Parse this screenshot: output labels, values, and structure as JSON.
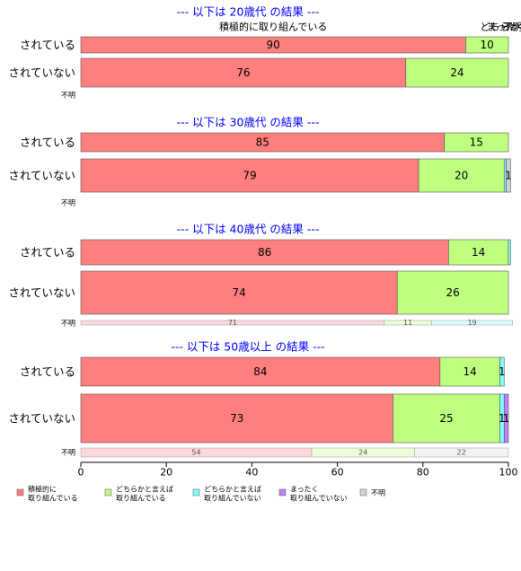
{
  "chart_data": {
    "type": "bar",
    "orientation": "horizontal",
    "stacked": true,
    "xlim": [
      0,
      100
    ],
    "x_ticks": [
      "0",
      "20",
      "40",
      "60",
      "80",
      "100"
    ],
    "legend_position": "bottom",
    "series": [
      {
        "name": "積極的に\n取り組んでいる",
        "color": "#FF7F7F"
      },
      {
        "name": "どちらかと言えば\n取り組んでいる",
        "color": "#BFFF7F"
      },
      {
        "name": "どちらかと言えば\n取り組んでいない",
        "color": "#7FFFFF"
      },
      {
        "name": "まったく\n取り組んでいない",
        "color": "#BF7FFF"
      },
      {
        "name": "不明",
        "color": "#D3D3D3"
      }
    ],
    "panels": [
      {
        "title": "--- 以下は 20歳代 の結果 ---",
        "top_labels": [
          {
            "text": "積極的に取り組んでいる",
            "at": 45
          },
          {
            "text": "どちらか",
            "at": 98
          },
          {
            "text": "まったく",
            "at": 99.5
          },
          {
            "text": "不明",
            "at": 101
          }
        ],
        "rows": [
          {
            "category": "されている",
            "values": [
              90,
              10,
              0,
              0,
              0
            ],
            "labels": [
              "90",
              "10",
              "",
              "",
              ""
            ]
          },
          {
            "category": "されていない",
            "values": [
              76,
              24,
              0,
              0,
              0
            ],
            "labels": [
              "76",
              "24",
              "",
              "",
              ""
            ]
          }
        ],
        "unknown": {
          "label": "不明",
          "values": [],
          "labels": []
        }
      },
      {
        "title": "--- 以下は 30歳代 の結果 ---",
        "top_labels": [],
        "rows": [
          {
            "category": "されている",
            "values": [
              85,
              15,
              0,
              0,
              0
            ],
            "labels": [
              "85",
              "15",
              "",
              "",
              ""
            ]
          },
          {
            "category": "されていない",
            "values": [
              79,
              20,
              0.5,
              0,
              1
            ],
            "labels": [
              "79",
              "20",
              "",
              "",
              "1"
            ]
          }
        ],
        "unknown": {
          "label": "不明",
          "values": [],
          "labels": []
        }
      },
      {
        "title": "--- 以下は 40歳代 の結果 ---",
        "top_labels": [],
        "rows": [
          {
            "category": "されている",
            "values": [
              86,
              14,
              0.5,
              0,
              0
            ],
            "labels": [
              "86",
              "14",
              "",
              "",
              ""
            ]
          },
          {
            "category": "されていない",
            "values": [
              74,
              26,
              0,
              0,
              0
            ],
            "labels": [
              "74",
              "26",
              "",
              "",
              ""
            ]
          }
        ],
        "unknown": {
          "label": "不明",
          "values": [
            71,
            11,
            19,
            0,
            0
          ],
          "labels": [
            "71",
            "11",
            "19",
            "",
            ""
          ]
        }
      },
      {
        "title": "--- 以下は 50歳以上 の結果 ---",
        "top_labels": [],
        "rows": [
          {
            "category": "されている",
            "values": [
              84,
              14,
              1,
              0,
              0
            ],
            "labels": [
              "84",
              "14",
              "1",
              "",
              ""
            ]
          },
          {
            "category": "されていない",
            "values": [
              73,
              25,
              1,
              1,
              0
            ],
            "labels": [
              "73",
              "25",
              "1",
              "1",
              ""
            ]
          }
        ],
        "unknown": {
          "label": "不明",
          "values": [
            54,
            24,
            0,
            0,
            22
          ],
          "labels": [
            "54",
            "24",
            "",
            "",
            "22"
          ]
        }
      }
    ]
  }
}
